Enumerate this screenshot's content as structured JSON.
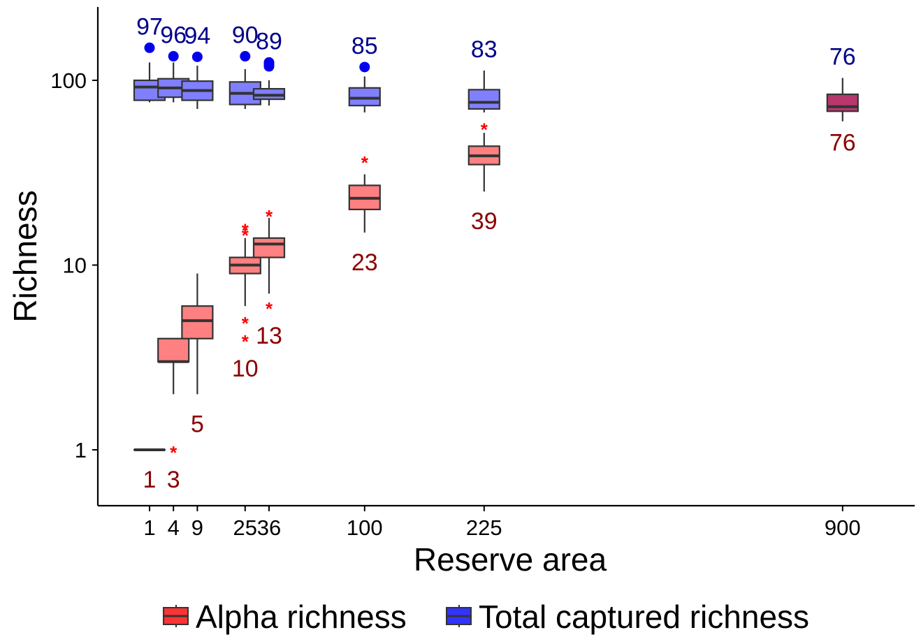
{
  "chart_data": {
    "type": "box",
    "xlabel": "Reserve area",
    "ylabel": "Richness",
    "x_scale": "sqrt",
    "y_scale": "log10",
    "ylim": [
      0.5,
      250
    ],
    "x_ticks": [
      "1",
      "4",
      "9",
      "25",
      "36",
      "100",
      "225",
      "900"
    ],
    "y_ticks": [
      "1",
      "10",
      "100"
    ],
    "legend": {
      "position": "bottom",
      "entries": [
        {
          "label": "Alpha richness",
          "color": "#FF3333"
        },
        {
          "label": "Total captured richness",
          "color": "#3333FF"
        }
      ]
    },
    "colors": {
      "alpha_fill": "#FF8080",
      "total_fill": "#8080FF",
      "overlap_fill": "#B8386E",
      "alpha_label": "#8B0000",
      "total_label": "#00008B",
      "alpha_outlier": "#FF0000",
      "total_outlier": "#0000EE"
    },
    "series": [
      {
        "key": "total",
        "boxes": [
          {
            "x": 1,
            "label": "97",
            "q1": 78,
            "median": 92,
            "q3": 100,
            "lo": 76,
            "hi": 125,
            "outliers": [
              150
            ]
          },
          {
            "x": 4,
            "label": "96",
            "q1": 81,
            "median": 91,
            "q3": 102,
            "lo": 76,
            "hi": 125,
            "outliers": [
              135
            ]
          },
          {
            "x": 9,
            "label": "94",
            "q1": 78,
            "median": 88,
            "q3": 99,
            "lo": 70,
            "hi": 120,
            "outliers": [
              134
            ]
          },
          {
            "x": 25,
            "label": "90",
            "q1": 74,
            "median": 85,
            "q3": 98,
            "lo": 70,
            "hi": 115,
            "outliers": [
              135
            ]
          },
          {
            "x": 36,
            "label": "89",
            "q1": 79,
            "median": 83,
            "q3": 90,
            "lo": 73,
            "hi": 100,
            "outliers": [
              119,
              122,
              125
            ]
          },
          {
            "x": 100,
            "label": "85",
            "q1": 73,
            "median": 80,
            "q3": 91,
            "lo": 67,
            "hi": 105,
            "outliers": [
              118
            ]
          },
          {
            "x": 225,
            "label": "83",
            "q1": 70,
            "median": 76,
            "q3": 89,
            "lo": 67,
            "hi": 113,
            "outliers": []
          },
          {
            "x": 900,
            "label": "76",
            "q1": 68,
            "median": 72,
            "q3": 84,
            "lo": 60,
            "hi": 103,
            "outliers": []
          }
        ]
      },
      {
        "key": "alpha",
        "boxes": [
          {
            "x": 1,
            "label": "1",
            "q1": 1,
            "median": 1,
            "q3": 1,
            "lo": 1,
            "hi": 1,
            "outliers": []
          },
          {
            "x": 4,
            "label": "3",
            "q1": 3,
            "median": 3,
            "q3": 4,
            "lo": 2,
            "hi": 4,
            "outliers": [
              1
            ]
          },
          {
            "x": 9,
            "label": "5",
            "q1": 4,
            "median": 5,
            "q3": 6,
            "lo": 2,
            "hi": 9,
            "outliers": []
          },
          {
            "x": 25,
            "label": "10",
            "q1": 9,
            "median": 10,
            "q3": 11,
            "lo": 6,
            "hi": 14,
            "outliers": [
              15,
              16,
              5,
              4
            ]
          },
          {
            "x": 36,
            "label": "13",
            "q1": 11,
            "median": 13,
            "q3": 14,
            "lo": 7,
            "hi": 18,
            "outliers": [
              19,
              6
            ]
          },
          {
            "x": 100,
            "label": "23",
            "q1": 20,
            "median": 23,
            "q3": 27,
            "lo": 15,
            "hi": 31,
            "outliers": [
              37
            ]
          },
          {
            "x": 225,
            "label": "39",
            "q1": 35,
            "median": 39,
            "q3": 44,
            "lo": 25,
            "hi": 52,
            "outliers": [
              56
            ]
          },
          {
            "x": 900,
            "label": "76",
            "q1": 68,
            "median": 72,
            "q3": 84,
            "lo": 60,
            "hi": 103,
            "outliers": []
          }
        ]
      }
    ]
  }
}
